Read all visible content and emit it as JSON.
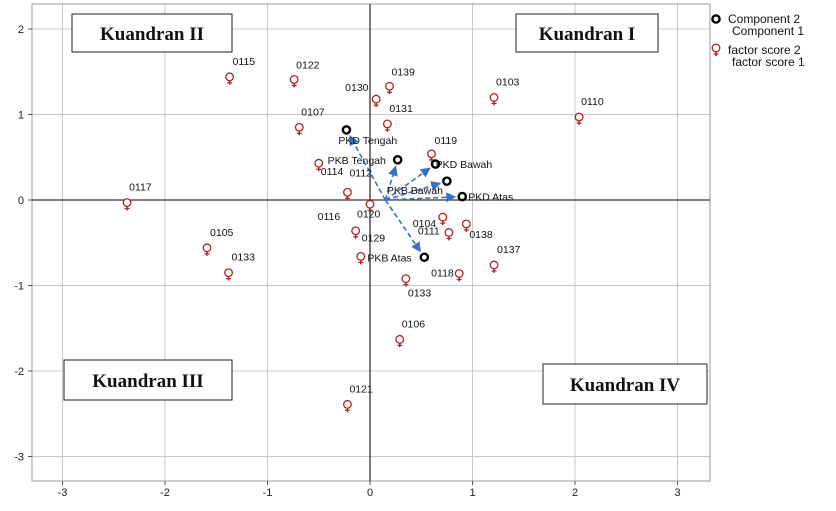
{
  "chart_data": {
    "type": "scatter",
    "xlim": [
      -3.3,
      3.35
    ],
    "ylim": [
      -3.3,
      2.3
    ],
    "x_ticks": [
      -3,
      -2,
      -1,
      0,
      1,
      2,
      3
    ],
    "y_ticks": [
      2,
      1,
      0,
      -1,
      -2,
      -3
    ],
    "grid": true,
    "legend_placement": "top-right",
    "legend": [
      {
        "symbol": "component",
        "lines": [
          "Component 2",
          "Component 1"
        ]
      },
      {
        "symbol": "factor",
        "lines": [
          "factor score 2",
          "factor score 1"
        ]
      }
    ],
    "quadrants": [
      {
        "label": "Kuandran II",
        "position": "top-left"
      },
      {
        "label": "Kuandran I",
        "position": "top-right"
      },
      {
        "label": "Kuandran III",
        "position": "bottom-left"
      },
      {
        "label": "Kuandran IV",
        "position": "bottom-right"
      }
    ],
    "components": [
      {
        "label": "PKD Tengah",
        "x": -0.23,
        "y": 0.82
      },
      {
        "label": "PKB Tengah",
        "x": 0.27,
        "y": 0.47
      },
      {
        "label": "PKD Bawah",
        "x": 0.64,
        "y": 0.42
      },
      {
        "label": "PKB Bawah",
        "x": 0.75,
        "y": 0.22
      },
      {
        "label": "PKD Atas",
        "x": 0.9,
        "y": 0.04
      },
      {
        "label": "PKB Atas",
        "x": 0.53,
        "y": -0.67
      }
    ],
    "factor_scores": [
      {
        "label": "0115",
        "x": -1.37,
        "y": 1.44
      },
      {
        "label": "0122",
        "x": -0.74,
        "y": 1.41
      },
      {
        "label": "0139",
        "x": 0.19,
        "y": 1.33
      },
      {
        "label": "0130",
        "x": 0.06,
        "y": 1.18
      },
      {
        "label": "0103",
        "x": 1.21,
        "y": 1.2
      },
      {
        "label": "0110",
        "x": 2.04,
        "y": 0.97
      },
      {
        "label": "0131",
        "x": 0.17,
        "y": 0.89
      },
      {
        "label": "0107",
        "x": -0.69,
        "y": 0.85
      },
      {
        "label": "0119",
        "x": 0.6,
        "y": 0.54
      },
      {
        "label": "0114",
        "x": -0.5,
        "y": 0.43
      },
      {
        "label": "0112",
        "x": -0.22,
        "y": 0.09
      },
      {
        "label": "0117",
        "x": -2.37,
        "y": -0.03
      },
      {
        "label": "0120",
        "x": 0.0,
        "y": -0.05
      },
      {
        "label": "0104",
        "x": 0.71,
        "y": -0.2
      },
      {
        "label": "0116",
        "x": -0.14,
        "y": -0.36
      },
      {
        "label": "0111",
        "x": 0.77,
        "y": -0.38
      },
      {
        "label": "0138",
        "x": 0.94,
        "y": -0.28
      },
      {
        "label": "0129",
        "x": -0.09,
        "y": -0.66
      },
      {
        "label": "0105",
        "x": -1.59,
        "y": -0.56
      },
      {
        "label": "0133",
        "x": -1.38,
        "y": -0.85
      },
      {
        "label": "0118",
        "x": 0.87,
        "y": -0.86
      },
      {
        "label": "0137",
        "x": 1.21,
        "y": -0.76
      },
      {
        "label": "0133",
        "x": 0.35,
        "y": -0.92
      },
      {
        "label": "0106",
        "x": 0.29,
        "y": -1.63
      },
      {
        "label": "0121",
        "x": -0.22,
        "y": -2.39
      }
    ]
  },
  "colors": {
    "component": "#000000",
    "factor_score": "#b02020",
    "arrow": "#3a6fc4",
    "grid": "#c8c8c8",
    "axis": "#333333"
  }
}
